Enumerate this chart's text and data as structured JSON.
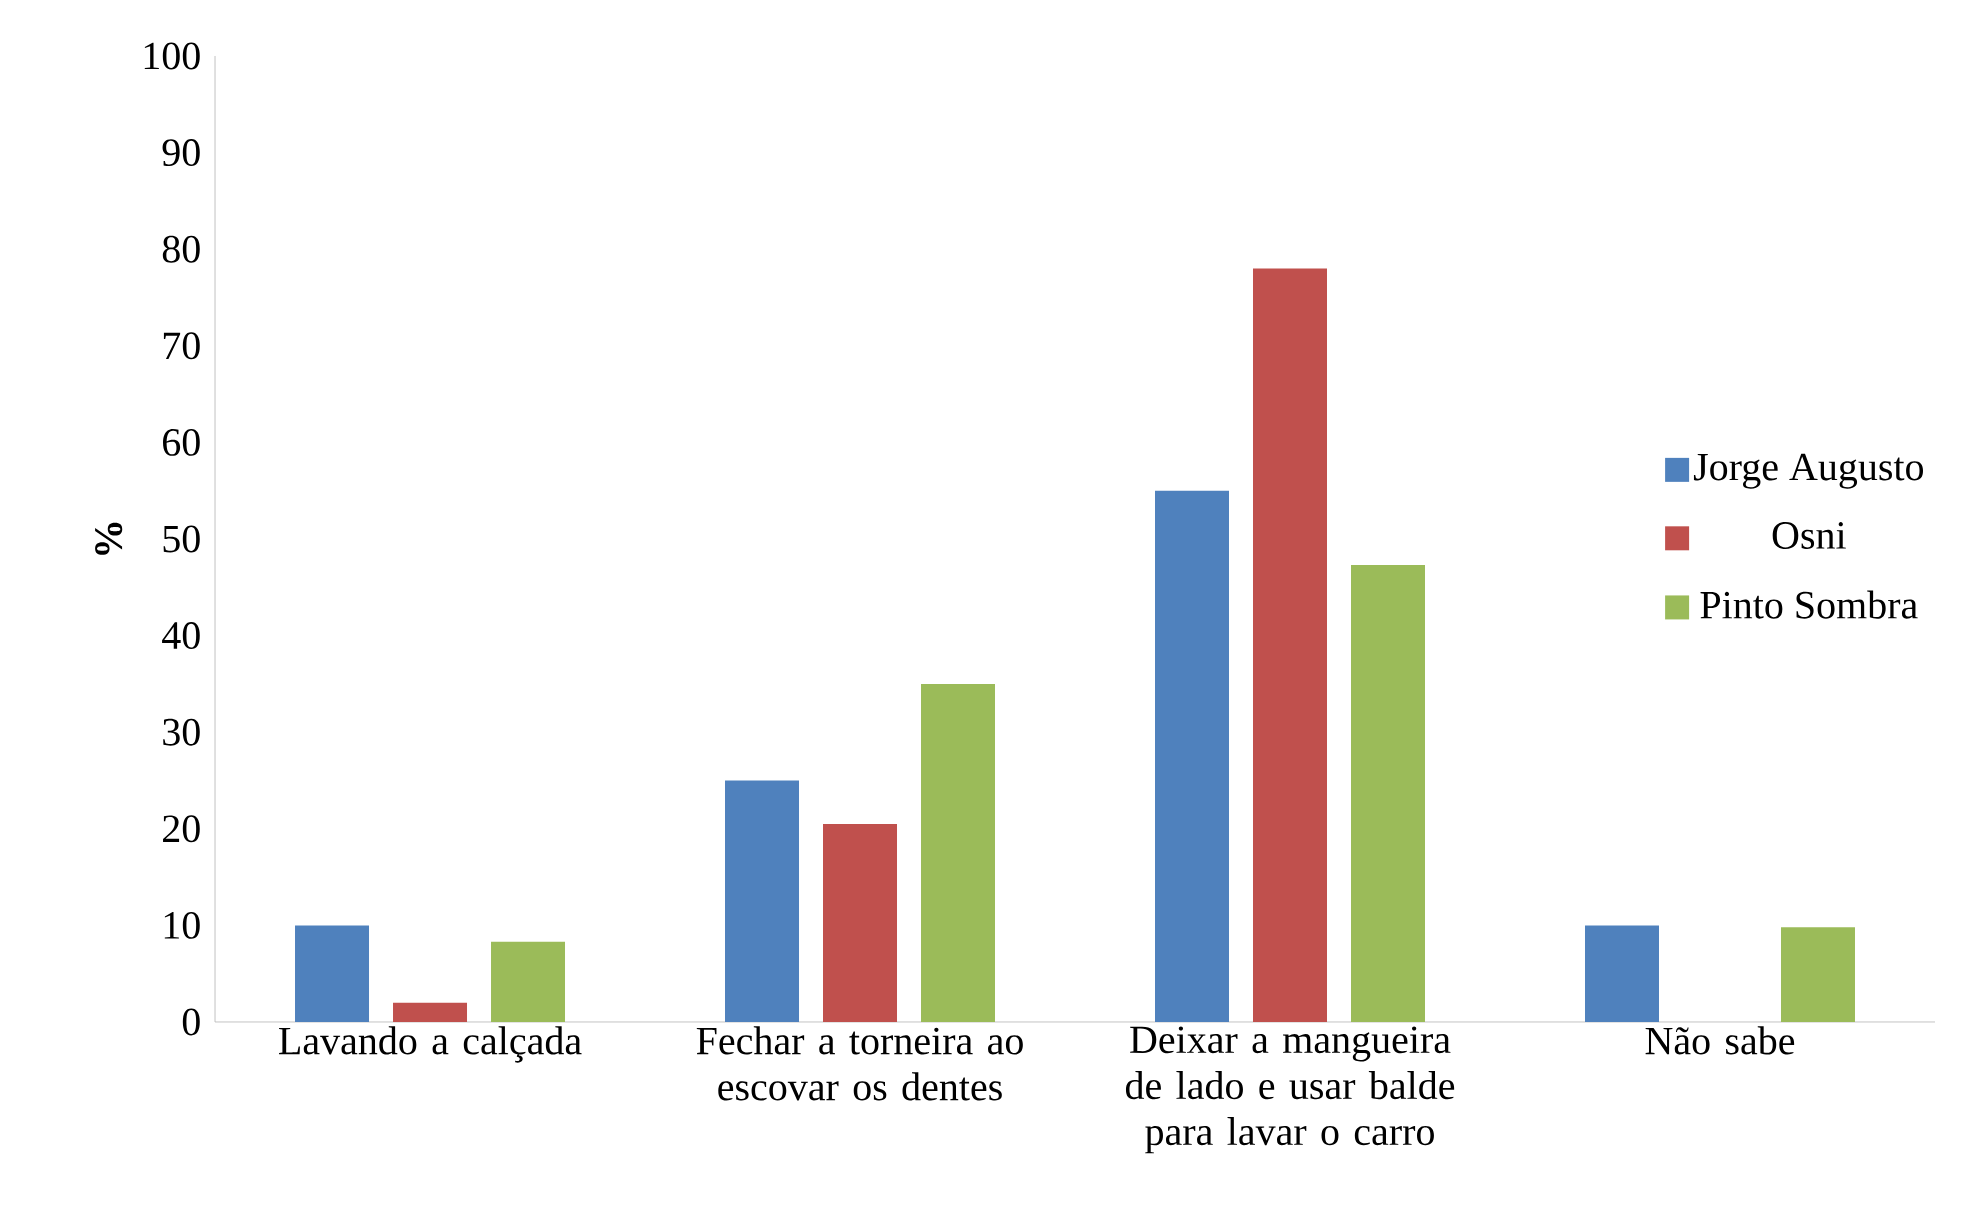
{
  "chart_data": {
    "type": "bar",
    "ylabel": "%",
    "categories": [
      "Lavando a calçada",
      "Fechar a torneira ao escovar os dentes",
      "Deixar a mangueira de lado e usar balde para lavar o carro",
      "Não sabe"
    ],
    "series": [
      {
        "name": "Jorge Augusto",
        "color": "#4f81bd",
        "values": [
          10,
          25,
          55,
          10
        ]
      },
      {
        "name": "Osni",
        "color": "#c0504d",
        "values": [
          2,
          20.5,
          78,
          0
        ]
      },
      {
        "name": "Pinto Sombra",
        "color": "#9bbb59",
        "values": [
          8.3,
          35,
          47.3,
          9.8
        ]
      }
    ],
    "ylim": [
      0,
      100
    ],
    "yticks": [
      0,
      10,
      20,
      30,
      40,
      50,
      60,
      70,
      80,
      90,
      100
    ],
    "grid": false,
    "legend": "right"
  }
}
